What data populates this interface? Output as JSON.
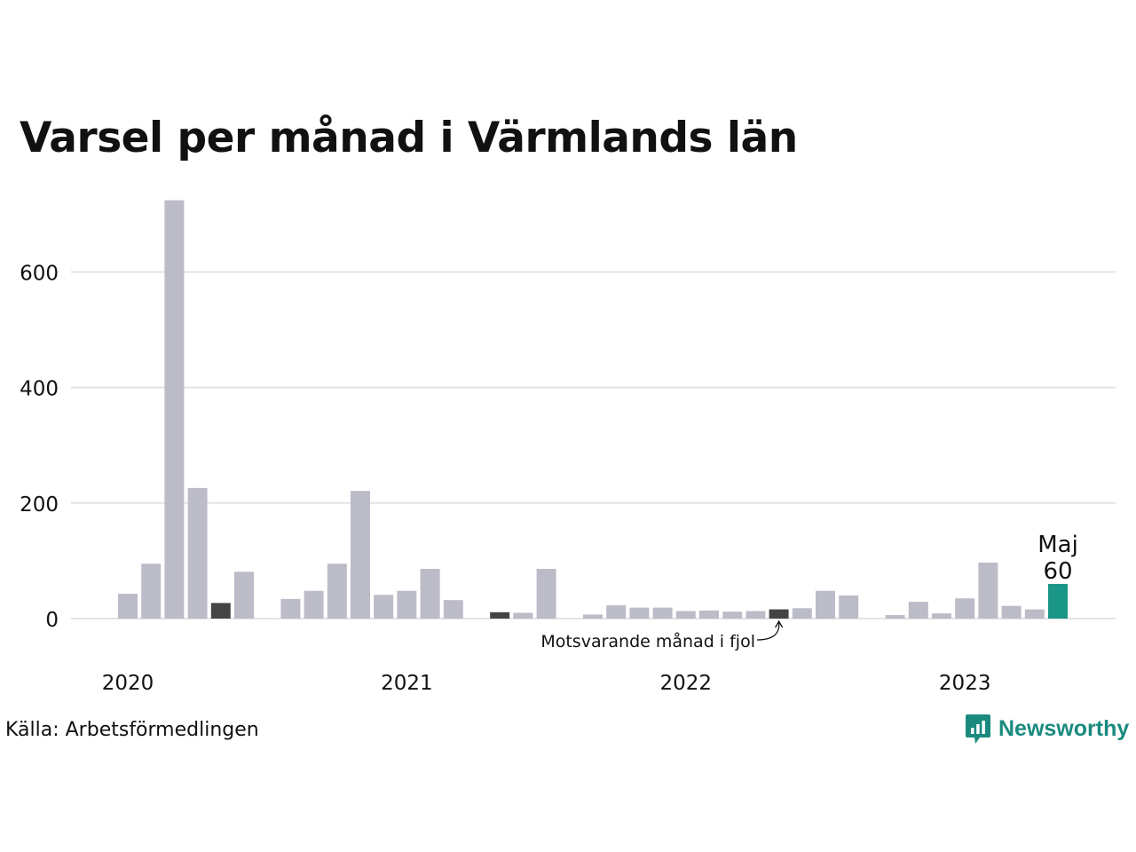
{
  "title": "Varsel per månad i Värmlands län",
  "source": "Källa: Arbetsförmedlingen",
  "brand": {
    "name": "Newsworthy",
    "icon": "newsworthy-logo-icon"
  },
  "colors": {
    "bar": "#bcbbc8",
    "same_month_last_year": "#444444",
    "highlight": "#1a9688",
    "grid": "#e3e3e3",
    "brand": "#1a8a7f"
  },
  "chart_data": {
    "type": "bar",
    "title": "Varsel per månad i Värmlands län",
    "xlabel": "",
    "ylabel": "",
    "ylim": [
      0,
      730
    ],
    "yticks": [
      0,
      200,
      400,
      600
    ],
    "grid": true,
    "x_year_labels": [
      "2020",
      "2021",
      "2022",
      "2023"
    ],
    "x_year_label_months": [
      "2020-01",
      "2021-01",
      "2022-01",
      "2023-01"
    ],
    "categories": [
      "2020-01",
      "2020-02",
      "2020-03",
      "2020-04",
      "2020-05",
      "2020-06",
      "2020-07",
      "2020-08",
      "2020-09",
      "2020-10",
      "2020-11",
      "2020-12",
      "2021-01",
      "2021-02",
      "2021-03",
      "2021-04",
      "2021-05",
      "2021-06",
      "2021-07",
      "2021-08",
      "2021-09",
      "2021-10",
      "2021-11",
      "2021-12",
      "2022-01",
      "2022-02",
      "2022-03",
      "2022-04",
      "2022-05",
      "2022-06",
      "2022-07",
      "2022-08",
      "2022-09",
      "2022-10",
      "2022-11",
      "2022-12",
      "2023-01",
      "2023-02",
      "2023-03",
      "2023-04",
      "2023-05"
    ],
    "values": [
      43,
      95,
      724,
      226,
      27,
      81,
      0,
      34,
      48,
      95,
      221,
      41,
      48,
      86,
      32,
      0,
      11,
      10,
      86,
      0,
      7,
      23,
      19,
      19,
      13,
      14,
      12,
      13,
      16,
      18,
      48,
      40,
      0,
      6,
      29,
      9,
      35,
      97,
      22,
      16,
      60
    ],
    "same_month_last_year": [
      "2020-05",
      "2021-05",
      "2022-05"
    ],
    "highlight": {
      "month": "2023-05",
      "label": "Maj",
      "value": "60"
    },
    "annotation": {
      "text": "Motsvarande månad i fjol",
      "month": "2022-05"
    }
  }
}
